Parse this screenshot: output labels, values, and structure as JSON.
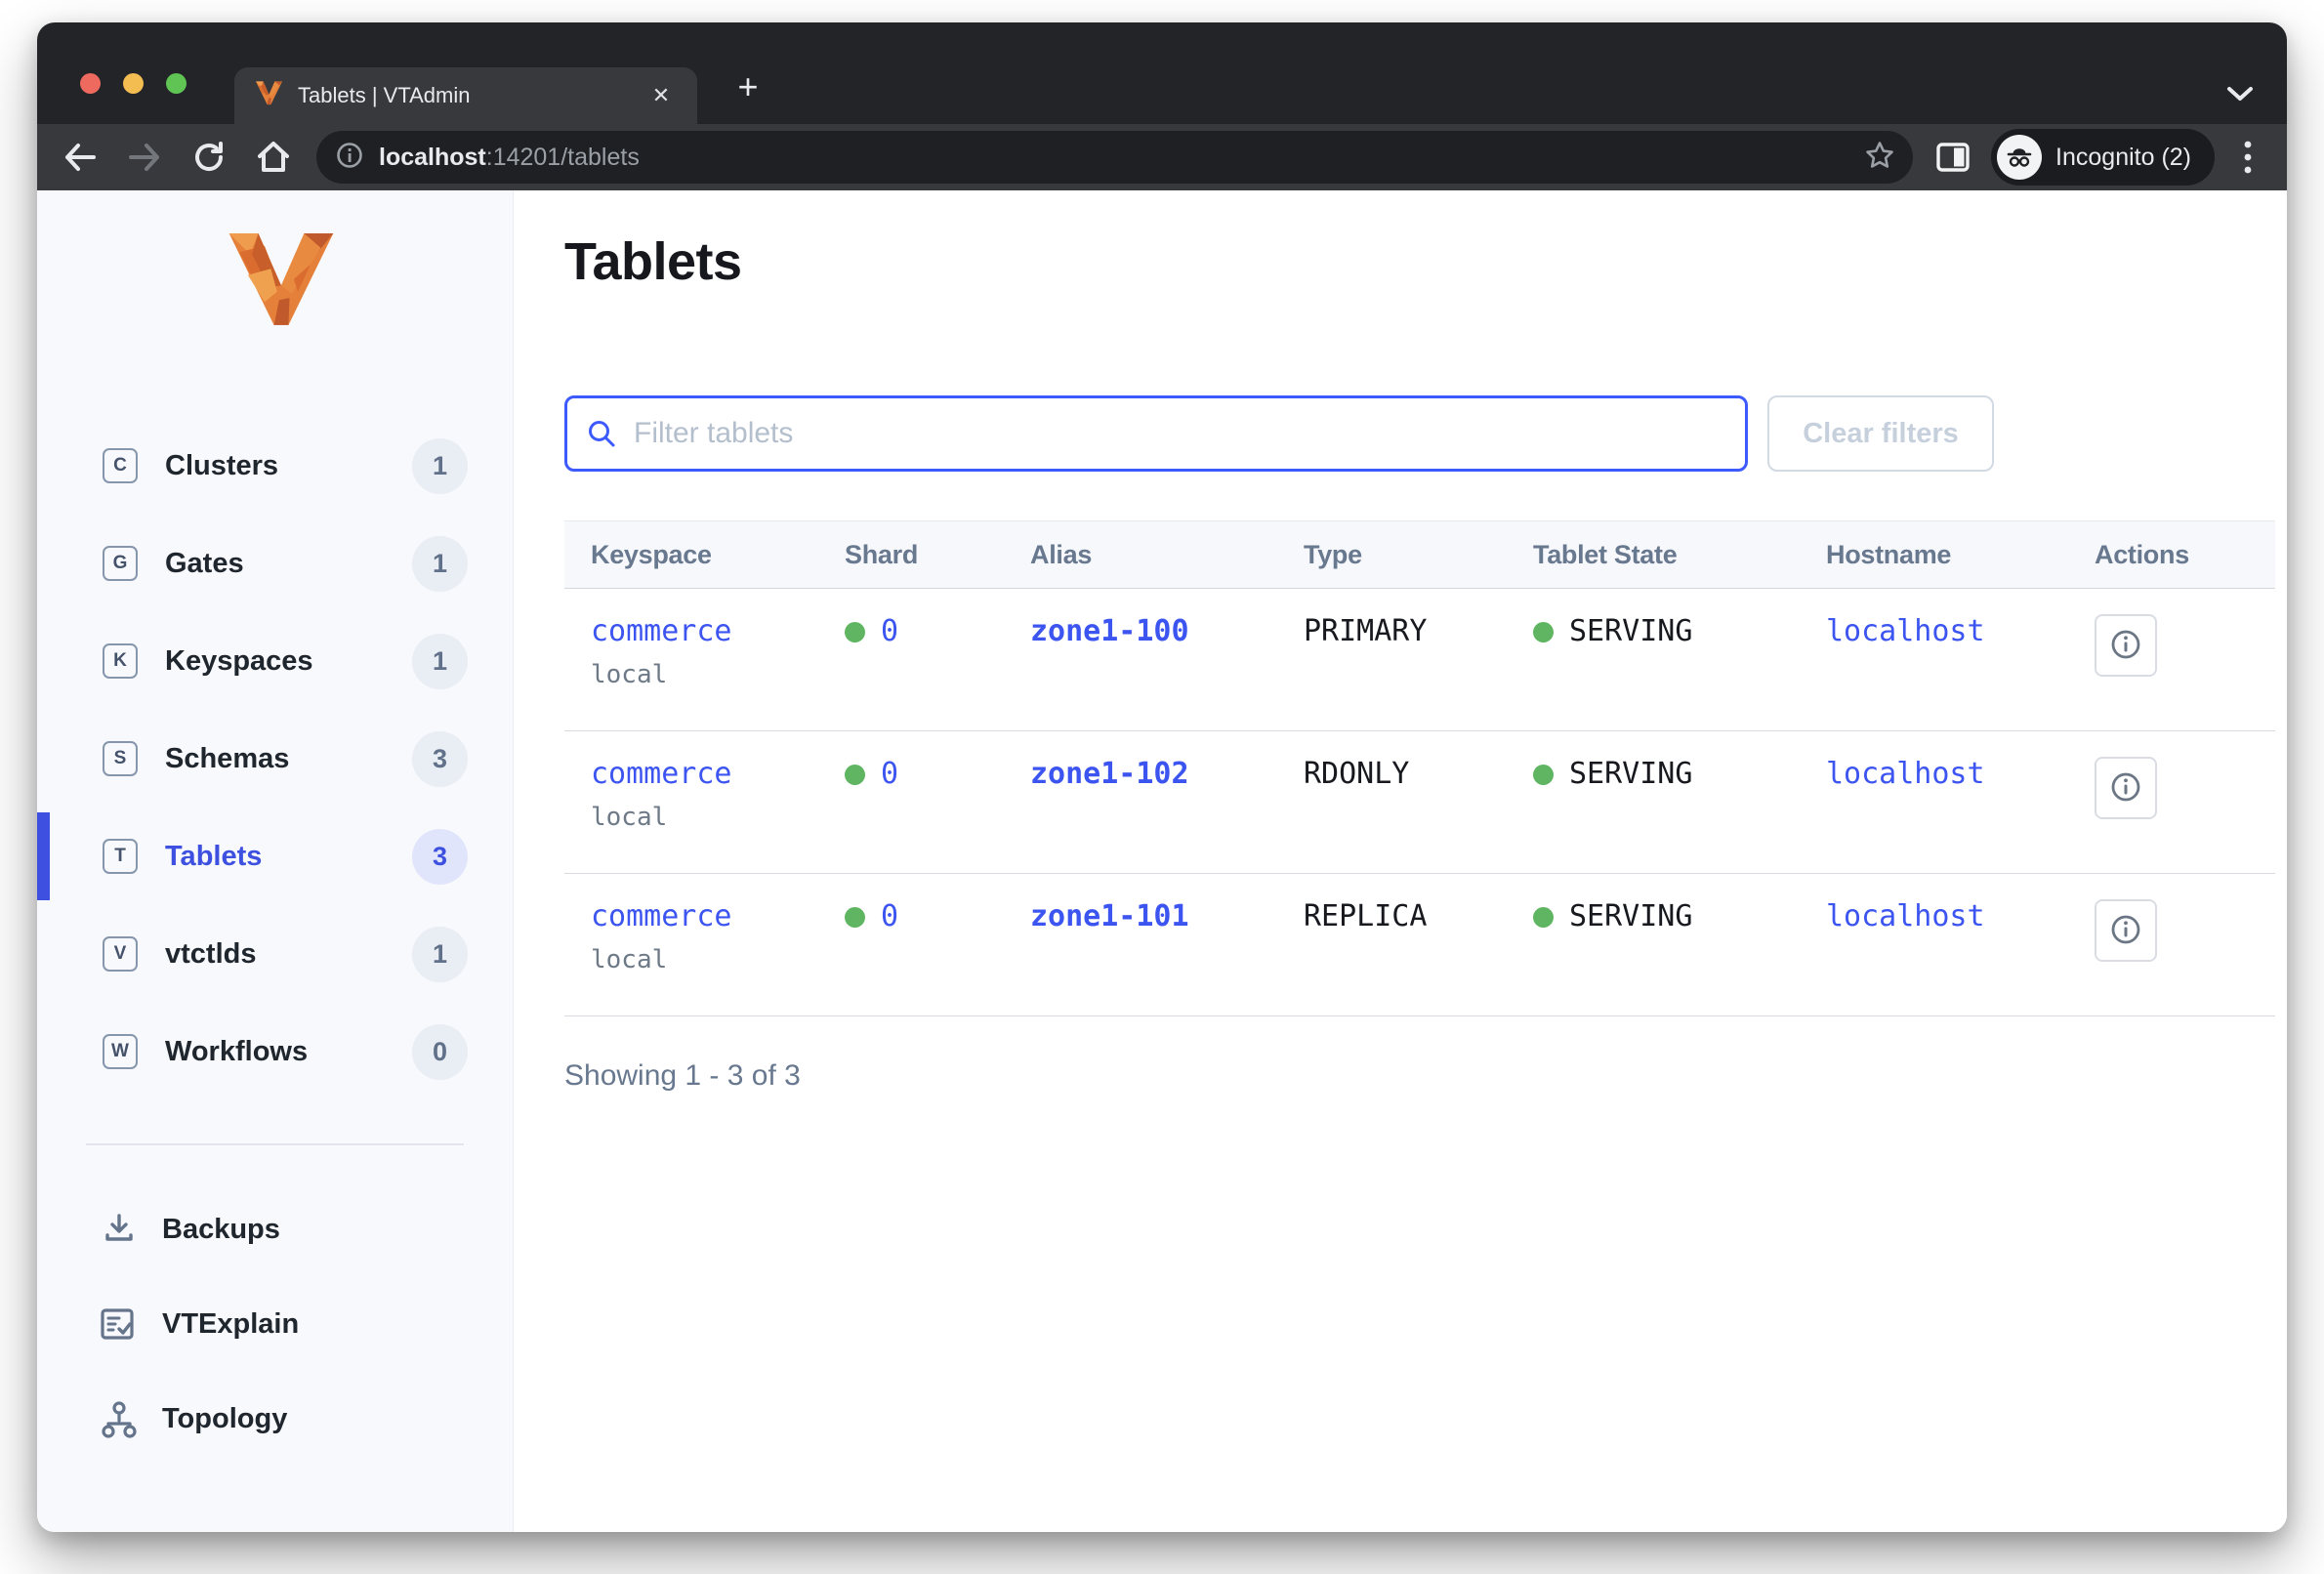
{
  "colors": {
    "accent": "#3d5afe",
    "link": "#3c55f0",
    "serving_green": "#5fb561",
    "active_badge_bg": "#e1e5fb"
  },
  "browser": {
    "tab_title": "Tablets | VTAdmin",
    "url_host": "localhost",
    "url_rest": ":14201/tablets",
    "incognito_label": "Incognito (2)"
  },
  "sidebar": {
    "items": [
      {
        "letter": "C",
        "label": "Clusters",
        "count": "1",
        "active": false
      },
      {
        "letter": "G",
        "label": "Gates",
        "count": "1",
        "active": false
      },
      {
        "letter": "K",
        "label": "Keyspaces",
        "count": "1",
        "active": false
      },
      {
        "letter": "S",
        "label": "Schemas",
        "count": "3",
        "active": false
      },
      {
        "letter": "T",
        "label": "Tablets",
        "count": "3",
        "active": true
      },
      {
        "letter": "V",
        "label": "vtctlds",
        "count": "1",
        "active": false
      },
      {
        "letter": "W",
        "label": "Workflows",
        "count": "0",
        "active": false
      }
    ],
    "utility": [
      {
        "icon": "download-icon",
        "label": "Backups"
      },
      {
        "icon": "document-check-icon",
        "label": "VTExplain"
      },
      {
        "icon": "topology-icon",
        "label": "Topology"
      }
    ]
  },
  "main": {
    "title": "Tablets",
    "filter_placeholder": "Filter tablets",
    "clear_filters_label": "Clear filters",
    "footer": "Showing 1 - 3 of 3"
  },
  "table": {
    "columns": [
      "Keyspace",
      "Shard",
      "Alias",
      "Type",
      "Tablet State",
      "Hostname",
      "Actions"
    ],
    "rows": [
      {
        "keyspace": "commerce",
        "cluster": "local",
        "shard": "0",
        "alias": "zone1-100",
        "type": "PRIMARY",
        "state": "SERVING",
        "hostname": "localhost"
      },
      {
        "keyspace": "commerce",
        "cluster": "local",
        "shard": "0",
        "alias": "zone1-102",
        "type": "RDONLY",
        "state": "SERVING",
        "hostname": "localhost"
      },
      {
        "keyspace": "commerce",
        "cluster": "local",
        "shard": "0",
        "alias": "zone1-101",
        "type": "REPLICA",
        "state": "SERVING",
        "hostname": "localhost"
      }
    ]
  }
}
